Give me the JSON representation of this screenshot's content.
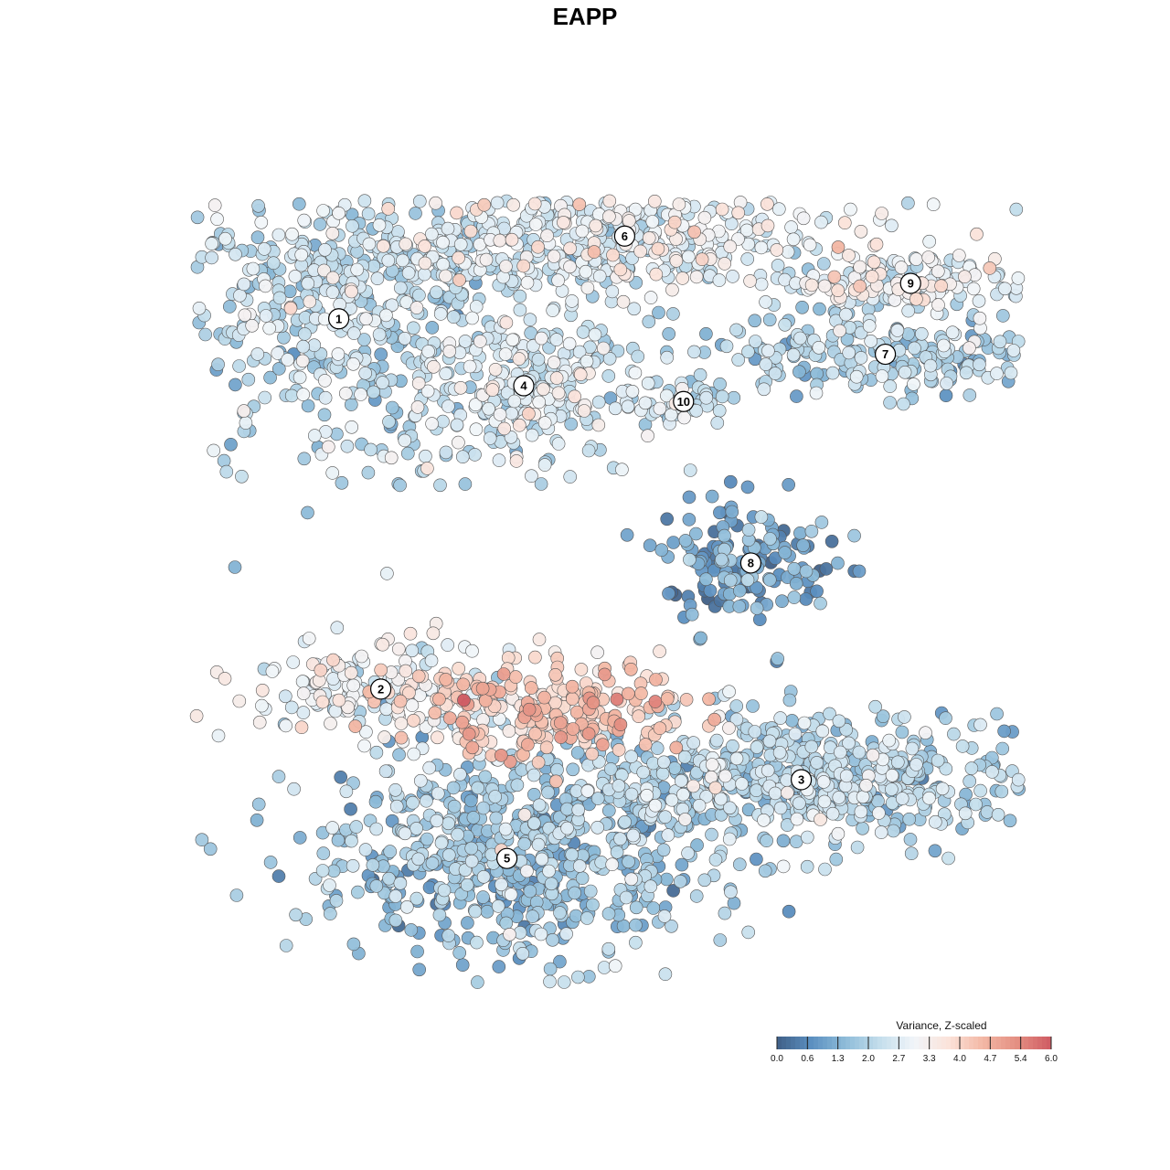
{
  "chart_data": {
    "type": "scatter",
    "title": "EAPP",
    "colorbar": {
      "title": "Variance, Z-scaled",
      "ticks": [
        "0.0",
        "0.6",
        "1.3",
        "2.0",
        "2.7",
        "3.3",
        "4.0",
        "4.7",
        "5.4",
        "6.0"
      ],
      "colors": [
        "#3f5f86",
        "#5b8fc0",
        "#8ebcd9",
        "#c4deec",
        "#f1f5f9",
        "#fbe3da",
        "#f3b8a5",
        "#e48f82",
        "#cf5a63"
      ],
      "range": [
        0,
        6
      ]
    },
    "clusters": [
      {
        "label": "1",
        "x": 0.18,
        "y": 0.72,
        "value": 2.2
      },
      {
        "label": "2",
        "x": 0.23,
        "y": -0.22,
        "value": 2.9
      },
      {
        "label": "3",
        "x": 0.73,
        "y": -0.45,
        "value": 2.0
      },
      {
        "label": "4",
        "x": 0.4,
        "y": 0.55,
        "value": 2.5
      },
      {
        "label": "5",
        "x": 0.38,
        "y": -0.65,
        "value": 1.7
      },
      {
        "label": "6",
        "x": 0.52,
        "y": 0.93,
        "value": 2.9
      },
      {
        "label": "7",
        "x": 0.83,
        "y": 0.63,
        "value": 1.9
      },
      {
        "label": "8",
        "x": 0.67,
        "y": 0.1,
        "value": 1.0
      },
      {
        "label": "9",
        "x": 0.86,
        "y": 0.81,
        "value": 2.8
      },
      {
        "label": "10",
        "x": 0.59,
        "y": 0.51,
        "value": 2.3
      }
    ],
    "high_region": {
      "x": 0.43,
      "y": -0.27,
      "value": 4.2
    },
    "xlim": [
      0,
      1
    ],
    "ylim": [
      -1,
      1.1
    ],
    "grid": false,
    "legend": "bottom-right"
  }
}
